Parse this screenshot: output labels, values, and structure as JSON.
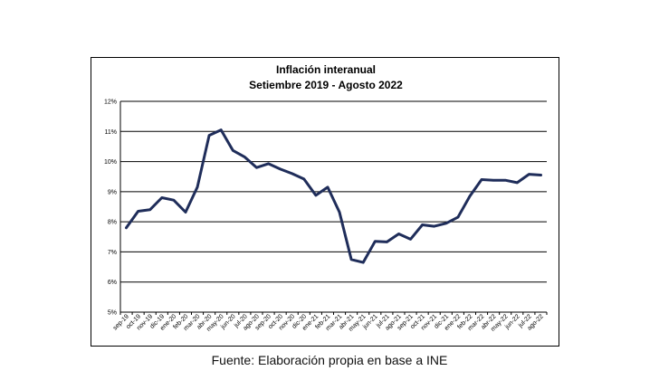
{
  "chart_data": {
    "type": "line",
    "title": "Inflación interanual",
    "subtitle": "Setiembre 2019 - Agosto 2022",
    "xlabel": "",
    "ylabel": "",
    "ylim": [
      5,
      12
    ],
    "y_ticks": [
      5,
      6,
      7,
      8,
      9,
      10,
      11,
      12
    ],
    "y_tick_labels": [
      "5%",
      "6%",
      "7%",
      "8%",
      "9%",
      "10%",
      "11%",
      "12%"
    ],
    "grid": true,
    "legend": "none",
    "categories": [
      "sep-19",
      "oct-19",
      "nov-19",
      "dic-19",
      "ene-20",
      "feb-20",
      "mar-20",
      "abr-20",
      "may-20",
      "jun-20",
      "jul-20",
      "ago-20",
      "sep-20",
      "oct-20",
      "nov-20",
      "dic-20",
      "ene-21",
      "feb-21",
      "mar-21",
      "abr-21",
      "may-21",
      "jun-21",
      "jul-21",
      "ago-21",
      "sep-21",
      "oct-21",
      "nov-21",
      "dic-21",
      "ene-22",
      "feb-22",
      "mar-22",
      "abr-22",
      "may-22",
      "jun-22",
      "jul-22",
      "ago-22"
    ],
    "series": [
      {
        "name": "Inflación interanual",
        "color": "#1f2d5a",
        "values": [
          7.8,
          8.35,
          8.4,
          8.8,
          8.72,
          8.32,
          9.15,
          10.87,
          11.05,
          10.37,
          10.15,
          9.8,
          9.93,
          9.75,
          9.6,
          9.42,
          8.88,
          9.15,
          8.32,
          6.75,
          6.65,
          7.35,
          7.33,
          7.6,
          7.42,
          7.9,
          7.85,
          7.95,
          8.15,
          8.85,
          9.4,
          9.38,
          9.38,
          9.3,
          9.58,
          9.55
        ]
      }
    ]
  },
  "caption": "Fuente: Elaboración propia en base a INE"
}
